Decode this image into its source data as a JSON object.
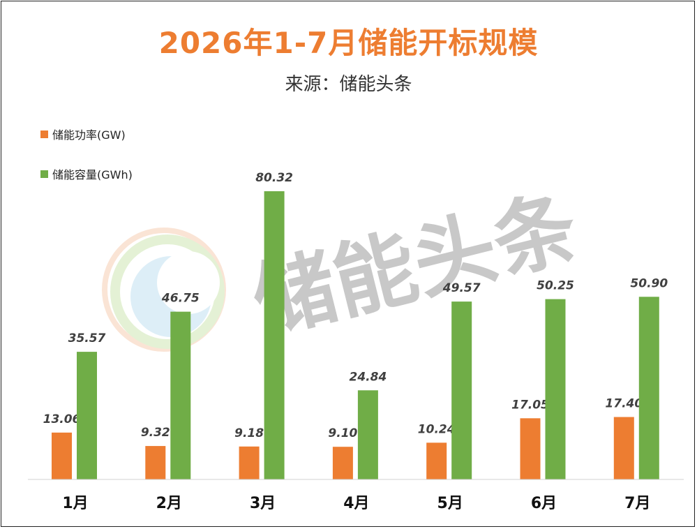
{
  "title": "2026年1-7月储能开标规模",
  "subtitle": "来源：储能头条",
  "watermark": {
    "text": "储能头条",
    "color": "#c8c8c8"
  },
  "legend": [
    {
      "label": "储能功率(GW)",
      "color": "#ED7D31"
    },
    {
      "label": "储能容量(GWh)",
      "color": "#70AD47"
    }
  ],
  "chart_data": {
    "type": "bar",
    "categories": [
      "1月",
      "2月",
      "3月",
      "4月",
      "5月",
      "6月",
      "7月"
    ],
    "series": [
      {
        "name": "储能功率(GW)",
        "color": "#ED7D31",
        "values": [
          13.06,
          9.32,
          9.18,
          9.1,
          10.24,
          17.05,
          17.4
        ],
        "labels": [
          "13.06",
          "9.32",
          "9.18",
          "9.10",
          "10.24",
          "17.05",
          "17.40"
        ]
      },
      {
        "name": "储能容量(GWh)",
        "color": "#70AD47",
        "values": [
          35.57,
          46.75,
          80.32,
          24.84,
          49.57,
          50.25,
          50.9
        ],
        "labels": [
          "35.57",
          "46.75",
          "80.32",
          "24.84",
          "49.57",
          "50.25",
          "50.90"
        ]
      }
    ],
    "ylim": [
      0,
      80.32
    ],
    "grid": false,
    "legend_position": "top-left"
  }
}
